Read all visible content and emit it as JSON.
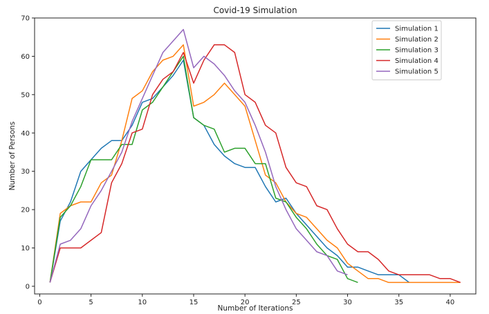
{
  "chart_data": {
    "type": "line",
    "title": "Covid-19 Simulation",
    "xlabel": "Number of Iterations",
    "ylabel": "Number of Persons",
    "xlim": [
      -0.5,
      42.5
    ],
    "ylim": [
      -2,
      70
    ],
    "xticks": [
      0,
      5,
      10,
      15,
      20,
      25,
      30,
      35,
      40
    ],
    "yticks": [
      0,
      10,
      20,
      30,
      40,
      50,
      60,
      70
    ],
    "grid": false,
    "legend_position": "top-right",
    "series": [
      {
        "name": "Simulation 1",
        "color": "#1f77b4",
        "x": [
          1,
          2,
          3,
          4,
          5,
          6,
          7,
          8,
          9,
          10,
          11,
          12,
          13,
          14,
          15,
          16,
          17,
          18,
          19,
          20,
          21,
          22,
          23,
          24,
          25,
          26,
          27,
          28,
          29,
          30,
          31,
          32,
          33,
          34,
          35,
          36
        ],
        "values": [
          1,
          17,
          22,
          30,
          33,
          36,
          38,
          38,
          42,
          48,
          49,
          52,
          55,
          59,
          44,
          42,
          37,
          34,
          32,
          31,
          31,
          26,
          22,
          23,
          19,
          16,
          13,
          10,
          8,
          5,
          5,
          4,
          3,
          3,
          3,
          1
        ]
      },
      {
        "name": "Simulation 2",
        "color": "#ff7f0e",
        "x": [
          1,
          2,
          3,
          4,
          5,
          6,
          7,
          8,
          9,
          10,
          11,
          12,
          13,
          14,
          15,
          16,
          17,
          18,
          19,
          20,
          21,
          22,
          23,
          24,
          25,
          26,
          27,
          28,
          29,
          30,
          31,
          32,
          33,
          34,
          35,
          36,
          37,
          38,
          39,
          40,
          41
        ],
        "values": [
          1,
          19,
          21,
          22,
          22,
          27,
          29,
          38,
          49,
          51,
          56,
          59,
          60,
          63,
          47,
          48,
          50,
          53,
          50,
          47,
          38,
          29,
          27,
          22,
          19,
          18,
          15,
          12,
          10,
          6,
          4,
          2,
          2,
          1,
          1,
          1,
          1,
          1,
          1,
          1,
          1
        ]
      },
      {
        "name": "Simulation 3",
        "color": "#2ca02c",
        "x": [
          1,
          2,
          3,
          4,
          5,
          6,
          7,
          8,
          9,
          10,
          11,
          12,
          13,
          14,
          15,
          16,
          17,
          18,
          19,
          20,
          21,
          22,
          23,
          24,
          25,
          26,
          27,
          28,
          29,
          30,
          31
        ],
        "values": [
          1,
          18,
          21,
          26,
          33,
          33,
          33,
          37,
          37,
          46,
          48,
          52,
          56,
          60,
          44,
          42,
          41,
          35,
          36,
          36,
          32,
          32,
          23,
          22,
          18,
          15,
          11,
          8,
          7,
          2,
          1
        ]
      },
      {
        "name": "Simulation 4",
        "color": "#d62728",
        "x": [
          1,
          2,
          3,
          4,
          5,
          6,
          7,
          8,
          9,
          10,
          11,
          12,
          13,
          14,
          15,
          16,
          17,
          18,
          19,
          20,
          21,
          22,
          23,
          24,
          25,
          26,
          27,
          28,
          29,
          30,
          31,
          32,
          33,
          34,
          35,
          36,
          37,
          38,
          39,
          40,
          41
        ],
        "values": [
          1,
          10,
          10,
          10,
          12,
          14,
          27,
          32,
          40,
          41,
          50,
          54,
          56,
          61,
          53,
          59,
          63,
          63,
          61,
          50,
          48,
          42,
          40,
          31,
          27,
          26,
          21,
          20,
          15,
          11,
          9,
          9,
          7,
          4,
          3,
          3,
          3,
          3,
          2,
          2,
          1
        ]
      },
      {
        "name": "Simulation 5",
        "color": "#9467bd",
        "x": [
          1,
          2,
          3,
          4,
          5,
          6,
          7,
          8,
          9,
          10,
          11,
          12,
          13,
          14,
          15,
          16,
          17,
          18,
          19,
          20,
          21,
          22,
          23,
          24,
          25,
          26,
          27,
          28,
          29,
          30
        ],
        "values": [
          1,
          11,
          12,
          15,
          21,
          25,
          30,
          35,
          43,
          49,
          55,
          61,
          64,
          67,
          57,
          60,
          58,
          55,
          51,
          48,
          42,
          35,
          26,
          20,
          15,
          12,
          9,
          8,
          4,
          3
        ]
      }
    ]
  }
}
